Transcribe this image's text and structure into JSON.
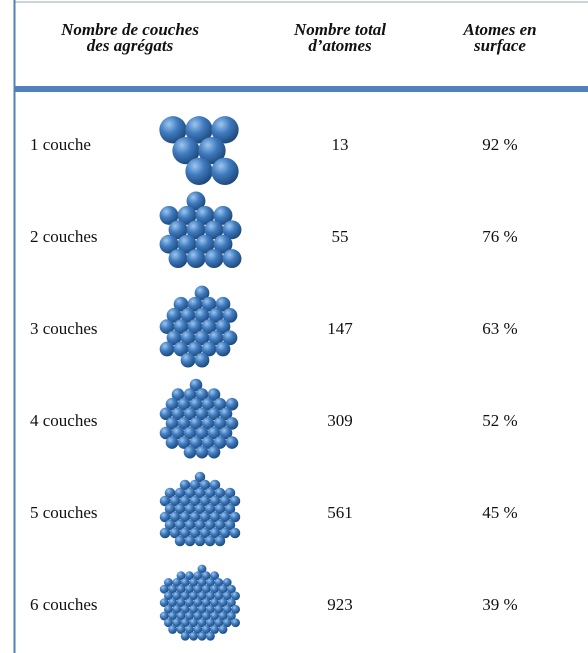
{
  "header": {
    "columns": [
      {
        "lines": [
          "Nombre de couches",
          "des agrégats"
        ]
      },
      {
        "lines": [
          "Nombre total",
          "d’atomes"
        ]
      },
      {
        "lines": [
          "Atomes en",
          "surface"
        ]
      }
    ]
  },
  "table": {
    "rows": [
      [
        "1 couche",
        "13",
        "92 %"
      ],
      [
        "2 couches",
        "55",
        "76 %"
      ],
      [
        "3 couches",
        "147",
        "63 %"
      ],
      [
        "4 couches",
        "309",
        "52 %"
      ],
      [
        "5 couches",
        "561",
        "45 %"
      ],
      [
        "6 couches",
        "923",
        "39 %"
      ]
    ]
  }
}
